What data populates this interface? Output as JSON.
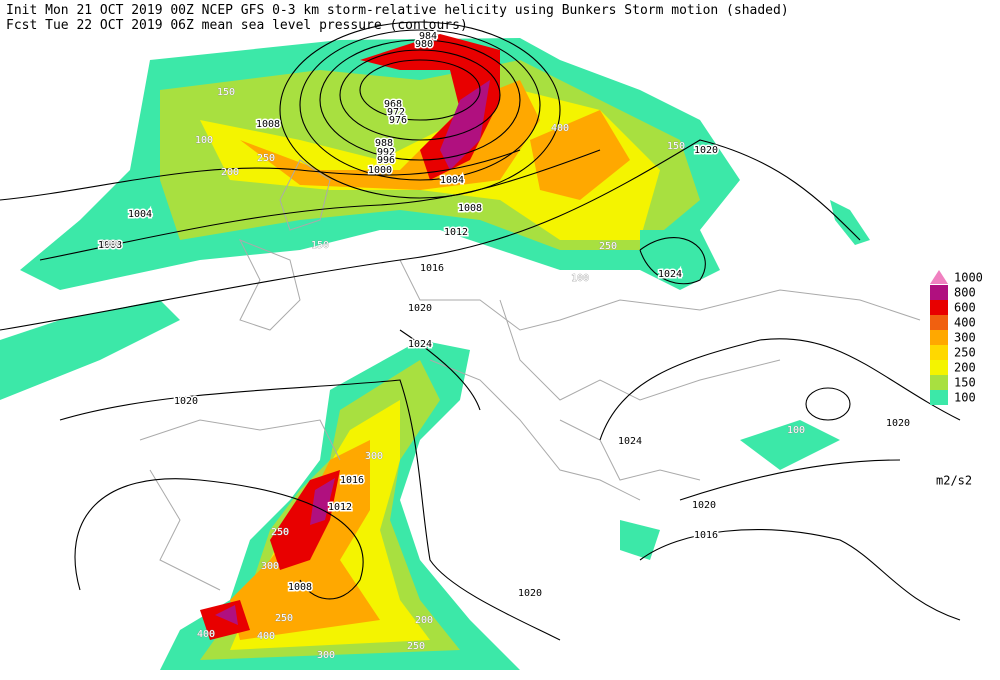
{
  "header": {
    "line1": "Init  Mon 21 OCT 2019 00Z  NCEP GFS 0-3 km storm-relative helicity using Bunkers Storm motion (shaded)",
    "line2": "Fcst Tue 22 OCT 2019 06Z  mean sea level pressure (contours)"
  },
  "legend": {
    "levels": [
      {
        "label": "1000",
        "color": "#f080c0"
      },
      {
        "label": "800",
        "color": "#b0107f"
      },
      {
        "label": "600",
        "color": "#e80000"
      },
      {
        "label": "400",
        "color": "#f06010"
      },
      {
        "label": "300",
        "color": "#ffa800"
      },
      {
        "label": "250",
        "color": "#ffd800"
      },
      {
        "label": "200",
        "color": "#f4f400"
      },
      {
        "label": "150",
        "color": "#a8e040"
      },
      {
        "label": "100",
        "color": "#3ce8a8"
      }
    ],
    "unit": "m2/s2"
  },
  "contour_labels": [
    "984",
    "980",
    "968",
    "972",
    "976",
    "988",
    "992",
    "996",
    "1000",
    "1004",
    "1008",
    "1004",
    "1008",
    "1008",
    "1012",
    "1016",
    "1020",
    "1024",
    "1020",
    "1024",
    "1020",
    "1024",
    "1020",
    "1020",
    "1016",
    "1020",
    "1016",
    "1012",
    "1008"
  ],
  "shade_labels": [
    "150",
    "100",
    "250",
    "200",
    "150",
    "100",
    "400",
    "250",
    "150",
    "100",
    "300",
    "250",
    "400",
    "300",
    "250",
    "100",
    "400",
    "300",
    "200",
    "250"
  ]
}
